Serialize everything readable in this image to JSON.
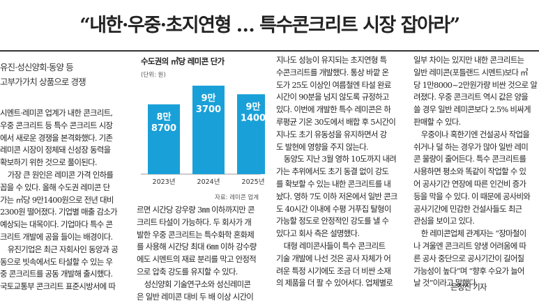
{
  "headline": "“내한·우중·초지연형 … 특수콘크리트 시장 잡아라”",
  "subheadline": [
    "유진·성신양회·동양 등",
    "고부가가치 상품으로 경쟁"
  ],
  "chart_data": {
    "type": "bar",
    "title": "수도권의 ㎥당 레미콘 단가",
    "unit": "(단위: 원)",
    "source": "자료: 레미콘 업계",
    "categories": [
      "2023년",
      "2024년",
      "2025년"
    ],
    "values": [
      88700,
      93700,
      91400
    ],
    "labels": [
      [
        "8만",
        "8700"
      ],
      [
        "9만",
        "3700"
      ],
      [
        "9만",
        "1400"
      ]
    ],
    "color": "#1aa0d8"
  },
  "columns": {
    "col1": [
      "시멘트·레미콘 업계가 내한 콘크리트,",
      "우중 콘크리트 등 특수 콘크리트 시장",
      "에서 새로운 경쟁을 본격화했다. 기존",
      "레미콘 시장이 정체돼 신성장 동력을",
      "확보하기 위한 것으로 풀이된다.",
      "　가장 큰 원인은 레미콘 가격 인하를",
      "꼽을 수 있다. 올해 수도권 레미콘 단",
      "가는 ㎥당 9만1400원으로 전년 대비",
      "2300원 떨어졌다. 기업별 매출 감소가",
      "예상되는 대목이다. 기업마다 특수 콘",
      "크리트 개발에 공을 들이는 배경이다.",
      "　유진기업은 최근 자회사인 동양과 공",
      "동으로 빗속에서도 타설할 수 있는 우",
      "중 콘크리트를 공동 개발해 출시했다.",
      "국토교통부 콘크리트 표준시방서에 따"
    ],
    "col2": [
      "르면 시간당 강우량 3㎜ 이하까지만 콘",
      "크리트 타설이 가능하다. 두 회사가 개",
      "발한 우중 콘크리트는 특수화학 혼화제",
      "를 사용해 시간당 최대 6㎜ 이하 강수량",
      "에도 시멘트의 재료 분리를 막고 안정적",
      "으로 압축 강도를 유지할 수 있다.",
      "　성신양회 기술연구소와 성신레미콘",
      "은 일반 레미콘 대비 두 배 이상 시간이"
    ],
    "col3": [
      "지나도 성능이 유지되는 초지연형 특",
      "수콘크리트를 개발했다. 통상 바깥 온",
      "도가 25도 이상인 여름철엔 타설 완료",
      "시간이 90분을 넘지 않도록 규정하고",
      "있다. 이번에 개발한 특수 레미콘은 하",
      "루평균 기온 30도에서 배합 후 5시간이",
      "지나도 초기 유동성을 유지하면서 강",
      "도 발현에 영향을 주지 않는다.",
      "　동양도 지난 3월 영하 10도까지 내려",
      "가는 추위에서도 초기 동결 없이 강도",
      "를 확보할 수 있는 내한 콘크리트를 내",
      "놨다. 영하 7도 이하 저온에서 일반 콘크",
      "도 40시간 이내에 수평 거푸집 탈형이",
      "가능할 정도로 안정적인 강도를 낼 수",
      "있다고 회사 측은 설명했다.",
      "　대형 레미콘사들이 특수 콘크리트",
      "기술 개발에 나선 것은 공사 자체가 어",
      "려운 특정 시기에도 조금 더 비싼 소재",
      "의 제품을 더 팔 수 있어서다. 업체별로"
    ],
    "col4": [
      "일부 차이는 있지만 내한 콘크리트는",
      "일반 레미콘(포틀랜드 시멘트)보다 ㎥",
      "당 1만8000~2만원가량 비싼 것으로 알",
      "려졌다. 우중 콘크리트 역시 값은 양을",
      "쓸 경우 일반 레미콘보다 2.5% 비싸게",
      "판매할 수 있다.",
      "　우중이나 혹한기엔 건설공사 작업을",
      "쉬거나 덜 하는 경우가 많아 일반 레미",
      "콘 물량이 줄어든다. 특수 콘크리트를",
      "사용하면 평소와 똑같이 작업할 수 있",
      "어 공사기간 연장에 따른 인건비 증가",
      "등을 막을 수 있다. 이 때문에 공사비와",
      "공사기간에 민감한 건설사들도 최근",
      "관심을 보이고 있다.",
      "　한 레미콘업체 관계자는 “장마철이",
      "나 겨울엔 콘크리트 양생 어려움에 따",
      "른 공사 중단으로 공사기간이 길어질",
      "가능성이 높다”며 “향후 수요가 늘어",
      "날 것”이라고 말했다."
    ]
  },
  "byline": "은정진 기자"
}
